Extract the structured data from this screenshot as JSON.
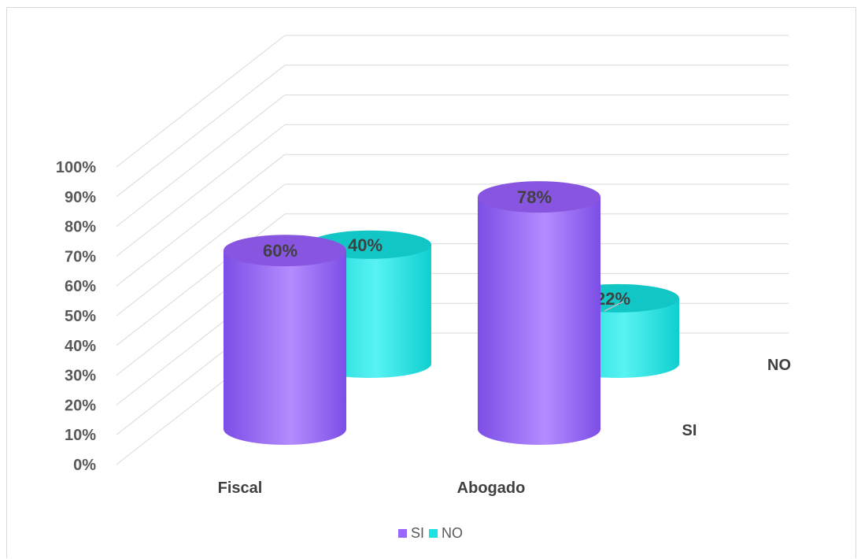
{
  "chart_data": {
    "type": "bar",
    "style": "3d-cylinder",
    "categories": [
      "Fiscal",
      "Abogado"
    ],
    "series": [
      {
        "name": "SI",
        "values": [
          60,
          78
        ],
        "color": "#9966ff"
      },
      {
        "name": "NO",
        "values": [
          40,
          22
        ],
        "color": "#19e3e3"
      }
    ],
    "data_labels": [
      [
        "60%",
        "78%"
      ],
      [
        "40%",
        "22%"
      ]
    ],
    "depth_labels": [
      "NO",
      "SI"
    ],
    "y_ticks": [
      "0%",
      "10%",
      "20%",
      "30%",
      "40%",
      "50%",
      "60%",
      "70%",
      "80%",
      "90%",
      "100%"
    ],
    "ylim": [
      0,
      100
    ],
    "grid": true,
    "legend": "bottom",
    "title": "",
    "xlabel": "",
    "ylabel": ""
  }
}
